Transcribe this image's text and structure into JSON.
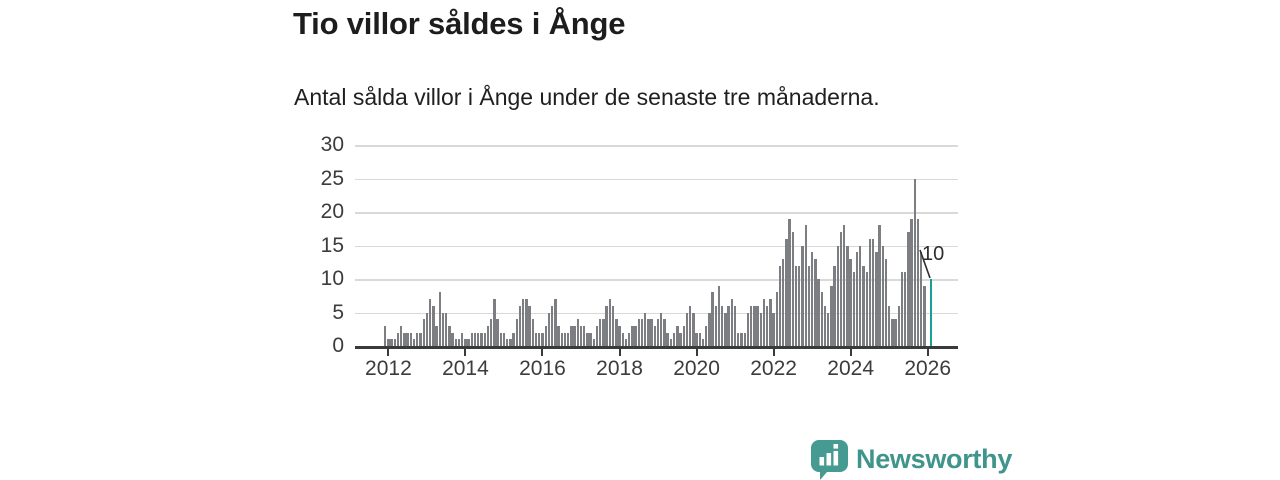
{
  "header": {
    "title": "Tio villor såldes i Ånge",
    "subtitle": "Antal sålda villor i Ånge under de senaste tre månaderna."
  },
  "chart_data": {
    "type": "bar",
    "title": "Tio villor såldes i Ånge",
    "subtitle": "Antal sålda villor i Ånge under de senaste tre månaderna.",
    "x_start": "2011-12",
    "x_step": "month",
    "x_tick_labels": [
      "2012",
      "2014",
      "2016",
      "2018",
      "2020",
      "2022",
      "2024",
      "2026"
    ],
    "y_ticks": [
      0,
      5,
      10,
      15,
      20,
      25,
      30
    ],
    "ylim": [
      0,
      30
    ],
    "grid": "horizontal",
    "bar_color": "#7d7e81",
    "highlight_color": "#18a099",
    "highlight_index": 170,
    "highlight_label": "10",
    "values": [
      3,
      1,
      1,
      1,
      2,
      3,
      2,
      2,
      2,
      1,
      2,
      2,
      4,
      5,
      7,
      6,
      3,
      8,
      5,
      5,
      3,
      2,
      1,
      1,
      2,
      1,
      1,
      2,
      2,
      2,
      2,
      2,
      3,
      4,
      7,
      4,
      2,
      2,
      1,
      1,
      2,
      4,
      6,
      7,
      7,
      6,
      4,
      2,
      2,
      2,
      3,
      5,
      6,
      7,
      3,
      2,
      2,
      2,
      3,
      3,
      4,
      3,
      3,
      2,
      2,
      1,
      3,
      4,
      4,
      6,
      7,
      6,
      4,
      3,
      2,
      1,
      2,
      3,
      3,
      4,
      4,
      5,
      4,
      4,
      3,
      4,
      5,
      4,
      2,
      1,
      2,
      3,
      2,
      3,
      5,
      6,
      5,
      2,
      2,
      1,
      3,
      5,
      8,
      6,
      9,
      6,
      5,
      6,
      7,
      6,
      2,
      2,
      2,
      5,
      6,
      6,
      6,
      5,
      7,
      6,
      7,
      5,
      8,
      12,
      13,
      16,
      19,
      17,
      12,
      12,
      15,
      18,
      12,
      14,
      13,
      10,
      8,
      6,
      5,
      9,
      12,
      15,
      17,
      18,
      15,
      13,
      11,
      14,
      15,
      12,
      11,
      16,
      16,
      14,
      18,
      15,
      13,
      6,
      4,
      4,
      6,
      11,
      11,
      17,
      19,
      25,
      19,
      14,
      9,
      0,
      10
    ]
  },
  "footer": {
    "brand": "Newsworthy"
  },
  "colors": {
    "title_text": "#1d1d1d",
    "axis_text": "#3c3c3c",
    "gridline": "#d9d9d9",
    "axis_line": "#3a3a3a",
    "brand_teal": "#3f948c"
  }
}
